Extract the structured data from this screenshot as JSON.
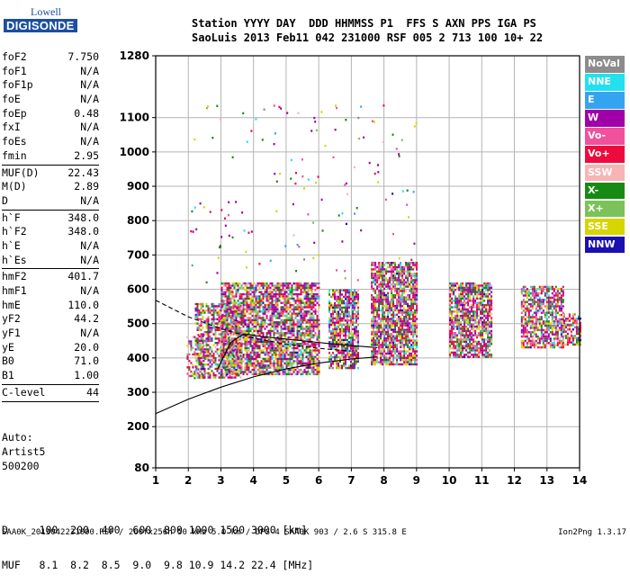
{
  "logo": {
    "line1": "Lowell",
    "line2": "DIGISONDE"
  },
  "header": {
    "line1": "Station YYYY DAY  DDD HHMMSS P1  FFS S AXN PPS IGA PS",
    "line2": "SaoLuis 2013 Feb11 042 231000 RSF 005 2 713 100 10+ 22"
  },
  "params": [
    {
      "name": "foF2",
      "value": "7.750"
    },
    {
      "name": "foF1",
      "value": "N/A"
    },
    {
      "name": "foF1p",
      "value": "N/A"
    },
    {
      "name": "foE",
      "value": "N/A"
    },
    {
      "name": "foEp",
      "value": "0.48"
    },
    {
      "name": "fxI",
      "value": "N/A"
    },
    {
      "name": "foEs",
      "value": "N/A"
    },
    {
      "name": "fmin",
      "value": "2.95",
      "divider": true
    },
    {
      "name": "MUF(D)",
      "value": "22.43"
    },
    {
      "name": "M(D)",
      "value": "2.89"
    },
    {
      "name": "D",
      "value": "N/A",
      "divider": true
    },
    {
      "name": "h`F",
      "value": "348.0"
    },
    {
      "name": "h`F2",
      "value": "348.0"
    },
    {
      "name": "h`E",
      "value": "N/A"
    },
    {
      "name": "h`Es",
      "value": "N/A",
      "divider": true
    },
    {
      "name": "hmF2",
      "value": "401.7"
    },
    {
      "name": "hmF1",
      "value": "N/A"
    },
    {
      "name": "hmE",
      "value": "110.0"
    },
    {
      "name": "yF2",
      "value": "44.2"
    },
    {
      "name": "yF1",
      "value": "N/A"
    },
    {
      "name": "yE",
      "value": "20.0"
    },
    {
      "name": "B0",
      "value": "71.0"
    },
    {
      "name": "B1",
      "value": "1.00",
      "divider": true
    },
    {
      "name": "C-level",
      "value": "44",
      "divider": true
    }
  ],
  "auto": {
    "line1": "Auto:",
    "line2": "Artist5",
    "line3": "500200"
  },
  "legend": [
    {
      "label": "NoVal",
      "color": "#8c8c8c"
    },
    {
      "label": "NNE",
      "color": "#22e0f0"
    },
    {
      "label": "E",
      "color": "#35a4f0"
    },
    {
      "label": "W",
      "color": "#a000a8"
    },
    {
      "label": "Vo-",
      "color": "#f0509c"
    },
    {
      "label": "Vo+",
      "color": "#ee0a3c"
    },
    {
      "label": "SSW",
      "color": "#f7b4b4"
    },
    {
      "label": "X-",
      "color": "#178a14"
    },
    {
      "label": "X+",
      "color": "#7cc25a"
    },
    {
      "label": "SSE",
      "color": "#d8d400"
    },
    {
      "label": "NNW",
      "color": "#1a10b0"
    }
  ],
  "bottom": {
    "line1": "D     100  200  400  600  800 1000 1500 3000 [km]",
    "line2": "MUF   8.1  8.2  8.5  9.0  9.8 10.9 14.2 22.4 [MHz]"
  },
  "footer": "SAA0K_2013042231000.RSF / 260fx256h 50 kHz 5.0 km / DPS-4 SAA0K 903 / 2.6 S 315.8 E",
  "version": "Ion2Png 1.3.17",
  "chart_data": {
    "type": "scatter",
    "xlim": [
      1,
      14
    ],
    "ylim": [
      80,
      1280
    ],
    "x_ticks": [
      1,
      2,
      3,
      4,
      5,
      6,
      7,
      8,
      9,
      10,
      11,
      12,
      13,
      14
    ],
    "x_tick_labels": [
      "1",
      "2",
      "3",
      "4",
      "5",
      "6",
      "7",
      "8",
      "9",
      "10",
      "11",
      "12",
      "13",
      "14"
    ],
    "y_ticks": [
      80,
      200,
      300,
      400,
      500,
      600,
      700,
      800,
      900,
      1000,
      1100,
      1280
    ],
    "y_tick_labels": [
      "80",
      "200",
      "300",
      "400",
      "500",
      "600",
      "700",
      "800",
      "900",
      "1000",
      "1100",
      "1280"
    ],
    "grid": true,
    "legend_position": "right",
    "echo_clusters": [
      {
        "x": [
          1.95,
          2.55
        ],
        "y": [
          340,
          470
        ],
        "density": 0.35
      },
      {
        "x": [
          2.2,
          3.6
        ],
        "y": [
          340,
          560
        ],
        "density": 0.6
      },
      {
        "x": [
          3.0,
          6.0
        ],
        "y": [
          350,
          620
        ],
        "density": 0.75
      },
      {
        "x": [
          6.3,
          7.2
        ],
        "y": [
          370,
          600
        ],
        "density": 0.75
      },
      {
        "x": [
          7.6,
          9.0
        ],
        "y": [
          380,
          680
        ],
        "density": 0.8
      },
      {
        "x": [
          10.0,
          11.3
        ],
        "y": [
          400,
          620
        ],
        "density": 0.8
      },
      {
        "x": [
          12.2,
          13.5
        ],
        "y": [
          430,
          610
        ],
        "density": 0.7
      },
      {
        "x": [
          13.5,
          14.0
        ],
        "y": [
          440,
          530
        ],
        "density": 0.6
      }
    ],
    "traces": [
      {
        "name": "",
        "style": "solid",
        "x": [
          1.0,
          2.0,
          3.0,
          4.0,
          5.0,
          6.0,
          7.0,
          7.8
        ],
        "y": [
          238,
          280,
          315,
          345,
          368,
          385,
          397,
          403
        ]
      },
      {
        "name": "",
        "style": "dashed",
        "x": [
          1.0,
          2.0,
          3.0,
          4.0,
          5.0,
          6.0,
          7.0
        ],
        "y": [
          568,
          520,
          485,
          458,
          440,
          428,
          420
        ]
      },
      {
        "name": "",
        "style": "solid",
        "x": [
          2.9,
          3.3,
          3.7,
          4.3,
          5.0,
          5.7,
          6.3,
          7.0,
          7.8
        ],
        "y": [
          368,
          445,
          470,
          462,
          455,
          448,
          442,
          436,
          430
        ]
      }
    ]
  }
}
